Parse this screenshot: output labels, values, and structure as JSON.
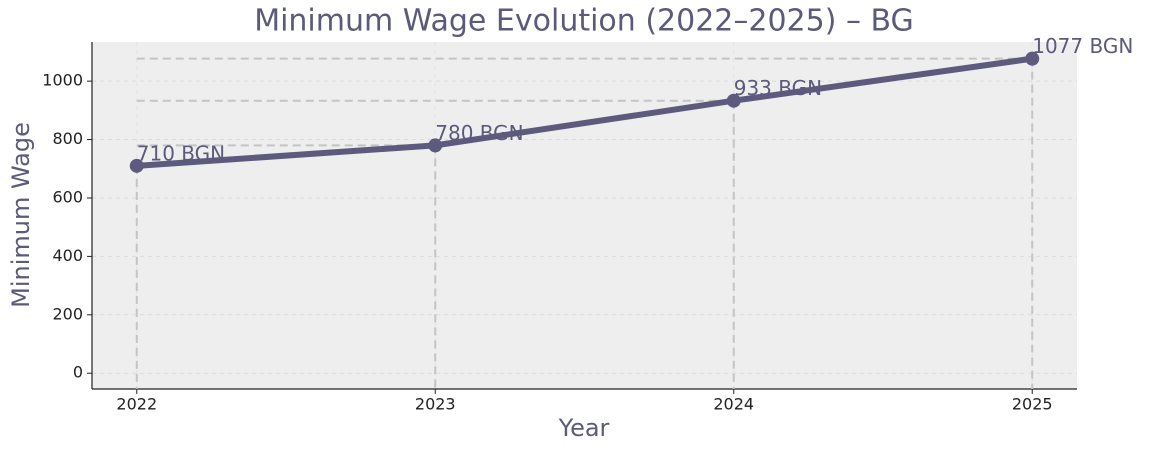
{
  "chart_data": {
    "type": "line",
    "title": "Minimum Wage Evolution (2022–2025) – BG",
    "x_label": "Year",
    "y_label": "Minimum Wage",
    "x": [
      2022,
      2023,
      2024,
      2025
    ],
    "series": [
      {
        "name": "Minimum Wage",
        "color": "#5e5a7e",
        "values": [
          710,
          780,
          933,
          1077
        ],
        "value_labels": [
          "710 BGN",
          "780 BGN",
          "933 BGN",
          "1077 BGN"
        ]
      }
    ],
    "xlim": [
      2021.85,
      2025.15
    ],
    "xticks": [
      2022,
      2023,
      2024,
      2025
    ],
    "ylim": [
      -54,
      1134
    ],
    "yticks": [
      0,
      200,
      400,
      600,
      800,
      1000
    ],
    "grid": true
  }
}
